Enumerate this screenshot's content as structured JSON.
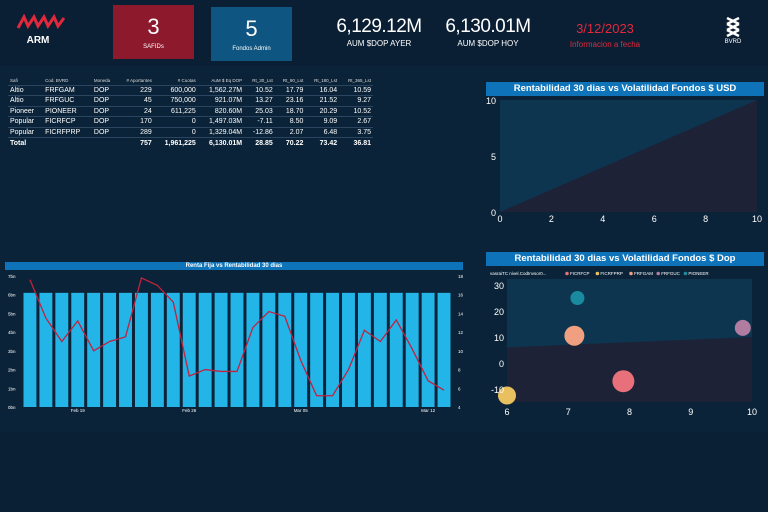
{
  "header": {
    "logo_text": "ARM",
    "kpis": [
      {
        "value": "3",
        "label": "SAFIDs",
        "color": "#8c1a2c"
      },
      {
        "value": "5",
        "label": "Fondos Admin",
        "color": "#0e5681"
      }
    ],
    "aum_ayer": {
      "value": "6,129.12M",
      "label": "AUM $DOP AYER"
    },
    "aum_hoy": {
      "value": "6,130.01M",
      "label": "AUM $DOP HOY"
    },
    "date": {
      "value": "3/12/2023",
      "label": "Informacion a fecha"
    },
    "bvrd_label": "BVRD"
  },
  "table": {
    "headers": [
      "Safi",
      "Cod. BVRD",
      "Moneda",
      "# Aportantes",
      "# Cuotas",
      "AuM $ Eq DOP",
      "Rt_30_Lst",
      "Rt_90_Lst",
      "Rt_180_Lst",
      "Rt_365_Lst"
    ],
    "rows": [
      [
        "Altio",
        "FRFGAM",
        "DOP",
        "229",
        "600,000",
        "1,562.27M",
        "10.52",
        "17.79",
        "16.04",
        "10.59"
      ],
      [
        "Altio",
        "FRFGUC",
        "DOP",
        "45",
        "750,000",
        "921.07M",
        "13.27",
        "23.16",
        "21.52",
        "9.27"
      ],
      [
        "Pioneer",
        "PIONEER",
        "DOP",
        "24",
        "611,225",
        "820.60M",
        "25.03",
        "18.70",
        "20.29",
        "10.52"
      ],
      [
        "Popular",
        "FICRFCP",
        "DOP",
        "170",
        "0",
        "1,497.03M",
        "-7.11",
        "8.50",
        "9.09",
        "2.67"
      ],
      [
        "Popular",
        "FICRFPRP",
        "DOP",
        "289",
        "0",
        "1,329.04M",
        "-12.86",
        "2.07",
        "6.48",
        "3.75"
      ]
    ],
    "total": [
      "Total",
      "",
      "",
      "757",
      "1,961,225",
      "6,130.01M",
      "28.85",
      "70.22",
      "73.42",
      "36.81"
    ]
  },
  "chart_data": [
    {
      "type": "area",
      "title": "Rentabilidad 30 dias vs Volatilidad Fondos $ USD",
      "xlim": [
        0,
        10
      ],
      "ylim": [
        0,
        10
      ],
      "xticks": [
        "0",
        "2",
        "4",
        "6",
        "8",
        "10"
      ],
      "yticks": [
        "0",
        "5",
        "10"
      ],
      "boundary": {
        "x": [
          0,
          10
        ],
        "y": [
          0,
          10
        ]
      },
      "colors": {
        "above": "#0d3550",
        "below": "#1d2236"
      }
    },
    {
      "type": "bar",
      "title": "Renta Fija vs Rentabilidad 30 dias",
      "xticks": [
        "Feb 19",
        "Feb 26",
        "Mar 05",
        "Mar 12"
      ],
      "left_ticks": [
        "0bn",
        "1bn",
        "2bn",
        "3bn",
        "4bn",
        "5bn",
        "6bn",
        "7bn"
      ],
      "right_ticks": [
        "4",
        "6",
        "8",
        "10",
        "12",
        "14",
        "16",
        "18"
      ],
      "ylim_left": [
        0,
        7
      ],
      "ylim_right": [
        4,
        18
      ],
      "bars": [
        6.1,
        6.1,
        6.1,
        6.1,
        6.1,
        6.1,
        6.1,
        6.1,
        6.1,
        6.1,
        6.1,
        6.1,
        6.1,
        6.1,
        6.1,
        6.1,
        6.1,
        6.1,
        6.1,
        6.1,
        6.1,
        6.1,
        6.1,
        6.1,
        6.1,
        6.1,
        6.1
      ],
      "line": [
        17.6,
        13.5,
        11,
        13.2,
        10,
        11,
        11.5,
        17.8,
        17,
        15.2,
        7.3,
        8,
        7.8,
        7.8,
        12.5,
        14.2,
        13.7,
        9,
        5.2,
        5.2,
        8,
        12.2,
        11,
        13.3,
        10.2,
        6.8,
        5.8
      ],
      "bar_color": "#23b5e8",
      "line_color": "#c0223f"
    },
    {
      "type": "scatter",
      "title": "Rentabilidad 30 dias vs Volatilidad Fondos $ Dop",
      "legend_prefix": "vasraiTC  nivel.CodInvsor0...",
      "xlim": [
        6,
        10
      ],
      "ylim": [
        -15,
        30
      ],
      "xticks": [
        "6",
        "7",
        "8",
        "9",
        "10"
      ],
      "yticks": [
        "-10",
        "0",
        "10",
        "20",
        "30"
      ],
      "points": [
        {
          "name": "FICRFCP",
          "x": 7.9,
          "y": -7,
          "size": 11,
          "color": "#e8707a"
        },
        {
          "name": "FICRFPRP",
          "x": 6.0,
          "y": -12.5,
          "size": 9,
          "color": "#e8c060"
        },
        {
          "name": "FRFGAM",
          "x": 7.1,
          "y": 10.5,
          "size": 10,
          "color": "#f0a080"
        },
        {
          "name": "FRFGUC",
          "x": 9.85,
          "y": 13.5,
          "size": 8,
          "color": "#b07ca0"
        },
        {
          "name": "PIONEER",
          "x": 7.15,
          "y": 25,
          "size": 7,
          "color": "#1a8aa0"
        }
      ],
      "boundary": {
        "x": [
          6,
          10
        ],
        "y": [
          6,
          10
        ]
      }
    }
  ]
}
